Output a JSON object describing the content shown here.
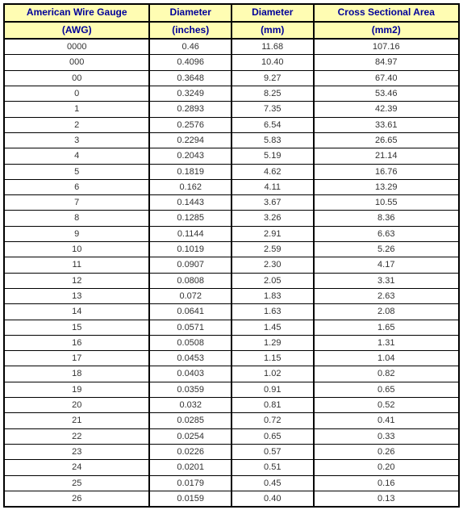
{
  "table": {
    "header_bg": "#fffdb3",
    "header_color": "#000099",
    "cell_color": "#333333",
    "border_color": "#000000",
    "columns": [
      {
        "line1": "American Wire Gauge",
        "line2": "(AWG)"
      },
      {
        "line1": "Diameter",
        "line2": "(inches)"
      },
      {
        "line1": "Diameter",
        "line2": "(mm)"
      },
      {
        "line1": "Cross Sectional Area",
        "line2": "(mm2)"
      }
    ],
    "rows": [
      [
        "0000",
        "0.46",
        "11.68",
        "107.16"
      ],
      [
        "000",
        "0.4096",
        "10.40",
        "84.97"
      ],
      [
        "00",
        "0.3648",
        "9.27",
        "67.40"
      ],
      [
        "0",
        "0.3249",
        "8.25",
        "53.46"
      ],
      [
        "1",
        "0.2893",
        "7.35",
        "42.39"
      ],
      [
        "2",
        "0.2576",
        "6.54",
        "33.61"
      ],
      [
        "3",
        "0.2294",
        "5.83",
        "26.65"
      ],
      [
        "4",
        "0.2043",
        "5.19",
        "21.14"
      ],
      [
        "5",
        "0.1819",
        "4.62",
        "16.76"
      ],
      [
        "6",
        "0.162",
        "4.11",
        "13.29"
      ],
      [
        "7",
        "0.1443",
        "3.67",
        "10.55"
      ],
      [
        "8",
        "0.1285",
        "3.26",
        "8.36"
      ],
      [
        "9",
        "0.1144",
        "2.91",
        "6.63"
      ],
      [
        "10",
        "0.1019",
        "2.59",
        "5.26"
      ],
      [
        "11",
        "0.0907",
        "2.30",
        "4.17"
      ],
      [
        "12",
        "0.0808",
        "2.05",
        "3.31"
      ],
      [
        "13",
        "0.072",
        "1.83",
        "2.63"
      ],
      [
        "14",
        "0.0641",
        "1.63",
        "2.08"
      ],
      [
        "15",
        "0.0571",
        "1.45",
        "1.65"
      ],
      [
        "16",
        "0.0508",
        "1.29",
        "1.31"
      ],
      [
        "17",
        "0.0453",
        "1.15",
        "1.04"
      ],
      [
        "18",
        "0.0403",
        "1.02",
        "0.82"
      ],
      [
        "19",
        "0.0359",
        "0.91",
        "0.65"
      ],
      [
        "20",
        "0.032",
        "0.81",
        "0.52"
      ],
      [
        "21",
        "0.0285",
        "0.72",
        "0.41"
      ],
      [
        "22",
        "0.0254",
        "0.65",
        "0.33"
      ],
      [
        "23",
        "0.0226",
        "0.57",
        "0.26"
      ],
      [
        "24",
        "0.0201",
        "0.51",
        "0.20"
      ],
      [
        "25",
        "0.0179",
        "0.45",
        "0.16"
      ],
      [
        "26",
        "0.0159",
        "0.40",
        "0.13"
      ]
    ]
  }
}
